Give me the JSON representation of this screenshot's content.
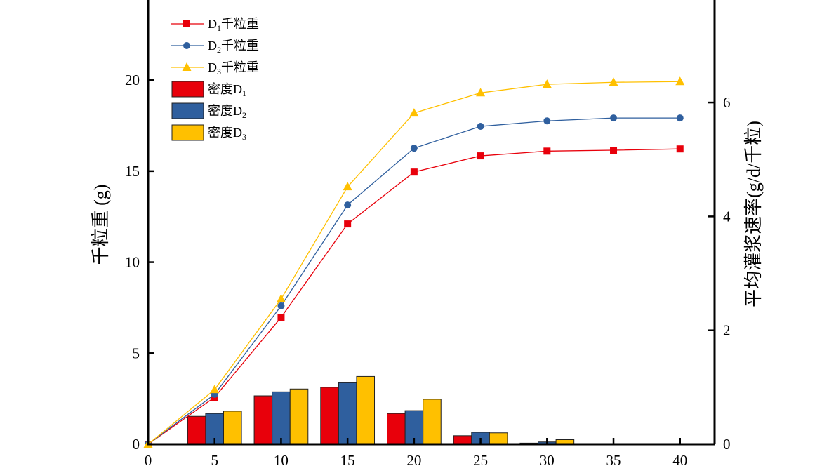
{
  "chart_data": {
    "type": "line+bar",
    "xlabel": "",
    "ylabel_left": "千粒重 (g)",
    "ylabel_right": "平均灌浆速率(g/d/千粒)",
    "xlim": [
      0,
      42.6
    ],
    "ylim_left": [
      0,
      24.4
    ],
    "ylim_right": [
      0,
      7.8
    ],
    "x_ticks": [
      "0",
      "5",
      "10",
      "15",
      "20",
      "25",
      "30",
      "35",
      "40"
    ],
    "y_left_ticks": [
      "0",
      "5",
      "10",
      "15",
      "20"
    ],
    "y_right_ticks": [
      "0",
      "2",
      "4",
      "6"
    ],
    "grid": false,
    "legend_position": "top-left",
    "line_x": [
      0,
      5,
      10,
      15,
      20,
      25,
      30,
      35,
      40
    ],
    "lines": [
      {
        "name": "D1千粒重",
        "name_main": "D",
        "name_sub": "1",
        "name_tail": "千粒重",
        "color": "#e8000b",
        "marker": "square",
        "values": [
          0,
          2.58,
          6.97,
          12.1,
          14.95,
          15.84,
          16.1,
          16.15,
          16.22
        ]
      },
      {
        "name": "D2千粒重",
        "name_main": "D",
        "name_sub": "2",
        "name_tail": "千粒重",
        "color": "#2f5f9e",
        "marker": "circle",
        "values": [
          0,
          2.74,
          7.6,
          13.14,
          16.26,
          17.46,
          17.76,
          17.92,
          17.92
        ]
      },
      {
        "name": "D3千粒重",
        "name_main": "D",
        "name_sub": "3",
        "name_tail": "千粒重",
        "color": "#ffc000",
        "marker": "triangle",
        "values": [
          0,
          3.0,
          7.98,
          14.14,
          18.19,
          19.3,
          19.77,
          19.88,
          19.92
        ]
      }
    ],
    "bar_x": [
      5,
      10,
      15,
      20,
      25,
      30
    ],
    "bars": [
      {
        "name": "密度D1",
        "name_main": "密度D",
        "name_sub": "1",
        "color": "#e8000b",
        "values": [
          0.49,
          0.85,
          1.0,
          0.54,
          0.15,
          0.02
        ]
      },
      {
        "name": "密度D2",
        "name_main": "密度D",
        "name_sub": "2",
        "color": "#2f5f9e",
        "values": [
          0.54,
          0.92,
          1.08,
          0.59,
          0.21,
          0.04
        ]
      },
      {
        "name": "密度D3",
        "name_main": "密度D",
        "name_sub": "3",
        "color": "#ffc000",
        "values": [
          0.58,
          0.97,
          1.19,
          0.79,
          0.2,
          0.08
        ]
      }
    ]
  }
}
